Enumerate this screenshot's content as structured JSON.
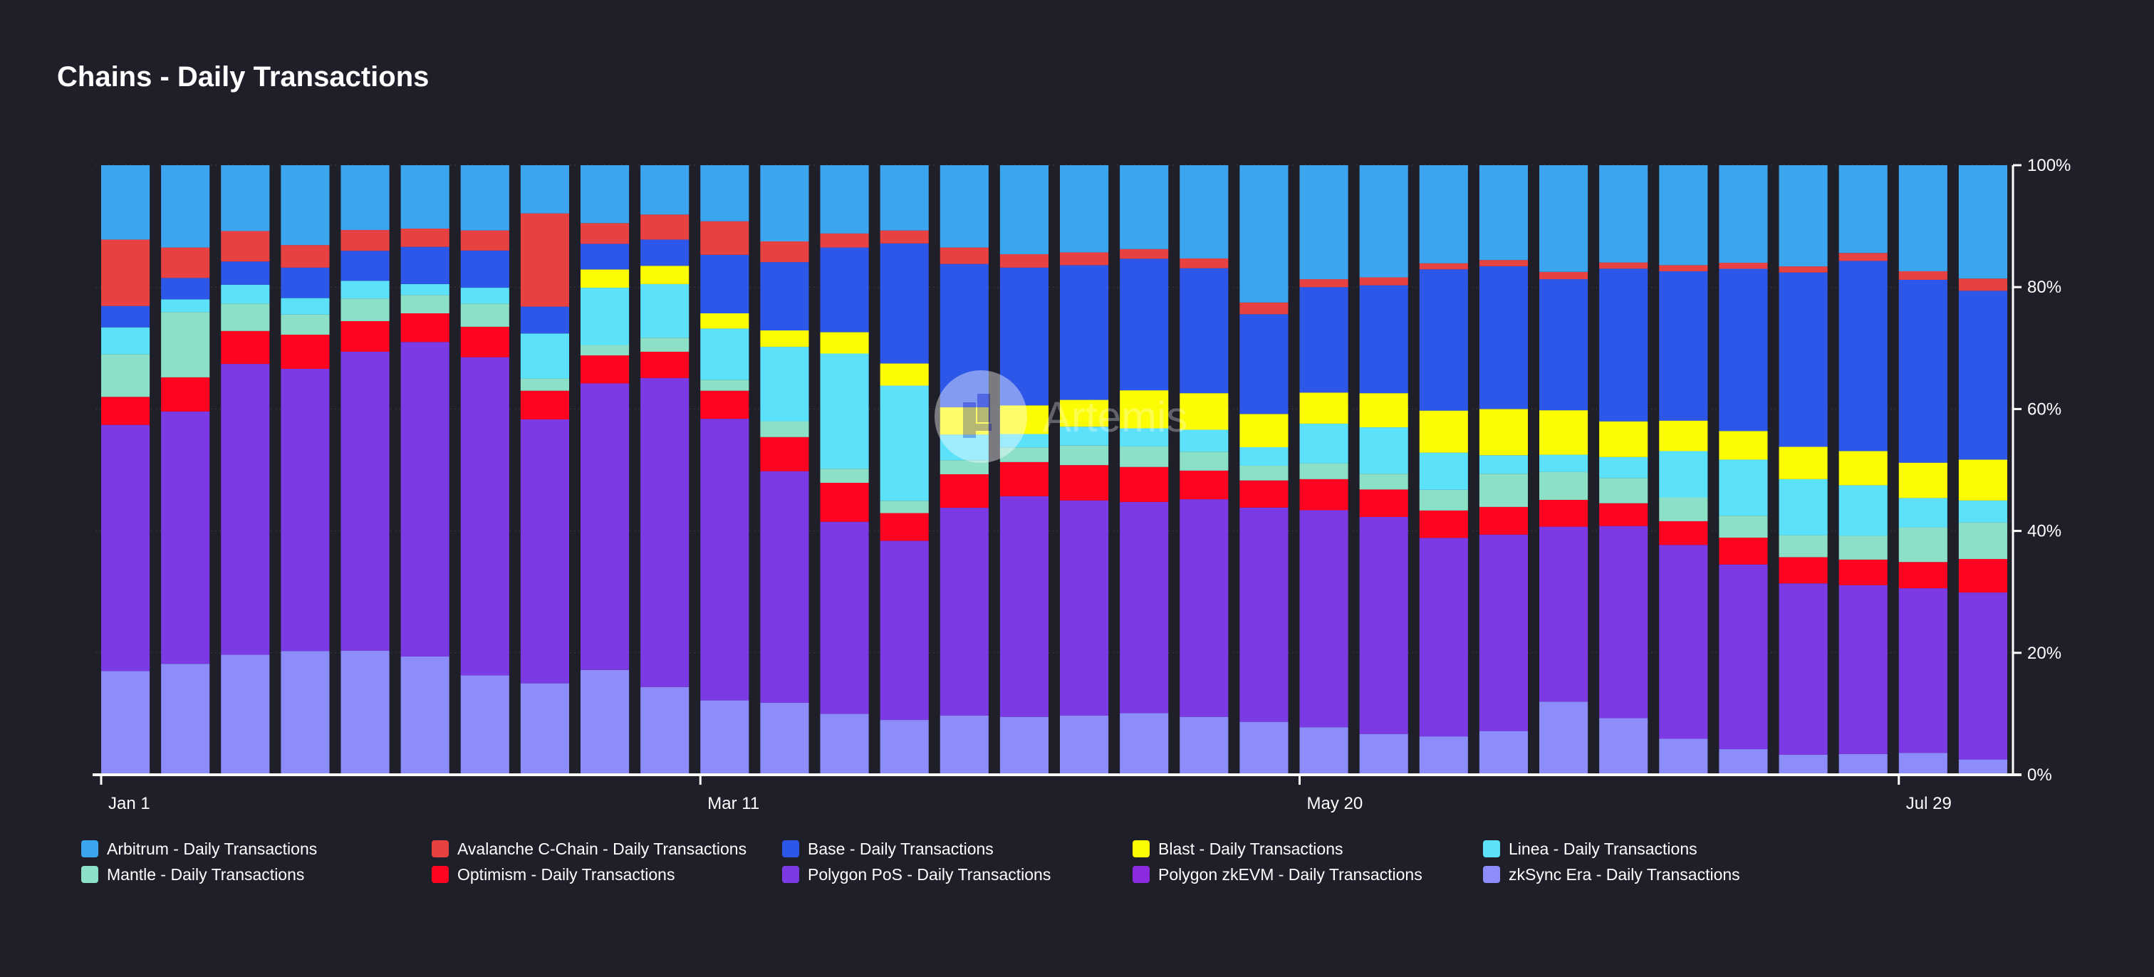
{
  "chart_data": {
    "type": "bar",
    "stacked": true,
    "normalized": true,
    "title": "Chains - Daily Transactions",
    "xlabel": "",
    "ylabel": "",
    "ylim": [
      0,
      100
    ],
    "y_ticks": [
      "0%",
      "20%",
      "40%",
      "60%",
      "80%",
      "100%"
    ],
    "x_tick_labels": [
      {
        "label": "Jan 1",
        "index": 0
      },
      {
        "label": "Mar 11",
        "index": 10
      },
      {
        "label": "May 20",
        "index": 20
      },
      {
        "label": "Jul 29",
        "index": 30
      }
    ],
    "bar_count": 32,
    "grid": true,
    "legend_position": "bottom",
    "watermark": "Artemis",
    "series": [
      {
        "name": "zkSync Era - Daily Transactions",
        "color": "#8c8cfa",
        "values": [
          17,
          18.2,
          19.7,
          20.3,
          20.3,
          19.4,
          16.3,
          15,
          17.2,
          14.4,
          12.2,
          11.8,
          10,
          8.9,
          9.7,
          9.5,
          9.7,
          10.2,
          9.5,
          8.6,
          7.8,
          6.7,
          6.3,
          7.1,
          12,
          9.2,
          5.9,
          4.2,
          3.3,
          3.4,
          3.6,
          2.5
        ]
      },
      {
        "name": "Polygon zkEVM - Daily Transactions",
        "color": "#8a2be2",
        "values": [
          0,
          0,
          0,
          0,
          0,
          0,
          0,
          0,
          0,
          0,
          0,
          0,
          0,
          0,
          0,
          0,
          0,
          0,
          0,
          0,
          0,
          0,
          0,
          0,
          0,
          0,
          0,
          0,
          0,
          0,
          0,
          0
        ]
      },
      {
        "name": "Polygon PoS - Daily Transactions",
        "color": "#7b3ae4",
        "values": [
          40.4,
          41.4,
          47.7,
          46.3,
          48.9,
          51.6,
          52.2,
          43.3,
          47,
          50.7,
          46.2,
          38,
          31.5,
          29.1,
          34.1,
          36.2,
          35.3,
          35,
          35.7,
          34.8,
          35.6,
          35.6,
          32.6,
          31.9,
          28.7,
          31.2,
          31.8,
          30.3,
          28.1,
          27.7,
          27,
          27.4
        ]
      },
      {
        "name": "Optimism - Daily Transactions",
        "color": "#ff0420",
        "values": [
          4.6,
          5.6,
          5.4,
          5.6,
          5,
          4.7,
          5,
          4.7,
          4.6,
          4.3,
          4.6,
          5.6,
          6.4,
          4.5,
          5.5,
          5.6,
          5.8,
          5.8,
          4.7,
          4.4,
          5.1,
          4.5,
          4.5,
          4.5,
          4.4,
          3.7,
          3.9,
          4.4,
          4.3,
          4.2,
          4.3,
          5.5
        ]
      },
      {
        "name": "Mantle - Daily Transactions",
        "color": "#8ce0c8",
        "values": [
          7,
          10.7,
          4.5,
          3.3,
          3.7,
          3,
          3.8,
          2,
          1.7,
          2.3,
          1.8,
          2.6,
          2.3,
          2,
          2.3,
          2.4,
          3.2,
          3.4,
          3.1,
          2.4,
          2.6,
          2.6,
          3.4,
          5.4,
          4.6,
          4.1,
          3.9,
          3.6,
          3.6,
          3.9,
          5.7,
          6
        ]
      },
      {
        "name": "Linea - Daily Transactions",
        "color": "#5ce1fa",
        "values": [
          4.4,
          2.1,
          3.1,
          2.7,
          2.9,
          1.8,
          2.6,
          7.4,
          9.4,
          8.8,
          8.4,
          12.2,
          18.9,
          18.7,
          4.2,
          2.2,
          3.1,
          3,
          3.6,
          3,
          6.5,
          7.6,
          6.1,
          3,
          2.8,
          3.4,
          7.6,
          9.2,
          9.2,
          8.3,
          4.8,
          3.6
        ]
      },
      {
        "name": "Blast - Daily Transactions",
        "color": "#fcfc03",
        "values": [
          0,
          0,
          0,
          0,
          0,
          0,
          0,
          0,
          3,
          3,
          2.5,
          2.7,
          3.5,
          3.6,
          4.5,
          4.7,
          4.4,
          6.3,
          6,
          5.4,
          5.1,
          5.6,
          6.9,
          7.5,
          7.3,
          5.8,
          5,
          4.7,
          5.3,
          5.6,
          5.8,
          6.7
        ]
      },
      {
        "name": "Base - Daily Transactions",
        "color": "#2d57e8",
        "values": [
          3.5,
          3.5,
          3.8,
          5,
          4.9,
          6.1,
          6.1,
          4.4,
          4.2,
          4.3,
          9.6,
          11.2,
          13.9,
          19.5,
          23.5,
          22.6,
          22.1,
          21.8,
          20.5,
          16.2,
          17.3,
          17.7,
          23.2,
          23.2,
          21.5,
          24.8,
          24.5,
          26.6,
          28.6,
          31.2,
          30,
          27.7
        ]
      },
      {
        "name": "Avalanche C-Chain - Daily Transactions",
        "color": "#e84142",
        "values": [
          10.9,
          5,
          5,
          3.7,
          3.4,
          3,
          3.3,
          15.3,
          3.4,
          4.1,
          5.5,
          3.4,
          2.3,
          2.1,
          2.7,
          2.2,
          2.1,
          1.6,
          1.6,
          1.9,
          1.3,
          1.3,
          1,
          1,
          1.2,
          1,
          1,
          1,
          1,
          1.3,
          1.4,
          2
        ]
      },
      {
        "name": "Arbitrum - Daily Transactions",
        "color": "#3ca5f0",
        "values": [
          12.2,
          13.5,
          10.8,
          13.1,
          10.6,
          10.4,
          10.7,
          7.9,
          9.5,
          8.1,
          9.2,
          12.5,
          11.2,
          10.6,
          13.5,
          14.6,
          14.3,
          13.9,
          15.3,
          22.3,
          18.7,
          18.4,
          16.1,
          15.4,
          17.5,
          15.8,
          16.4,
          16,
          16.6,
          14.4,
          17.4,
          18.6
        ]
      }
    ]
  },
  "legend_order": [
    "Arbitrum - Daily Transactions",
    "Avalanche C-Chain - Daily Transactions",
    "Base - Daily Transactions",
    "Blast - Daily Transactions",
    "Linea - Daily Transactions",
    "Mantle - Daily Transactions",
    "Optimism - Daily Transactions",
    "Polygon PoS - Daily Transactions",
    "Polygon zkEVM - Daily Transactions",
    "zkSync Era - Daily Transactions"
  ],
  "colors": {
    "background": "#1e1f29",
    "separator": "#1e1f29",
    "axis": "#ffffff",
    "grid": "#3a3b47"
  }
}
